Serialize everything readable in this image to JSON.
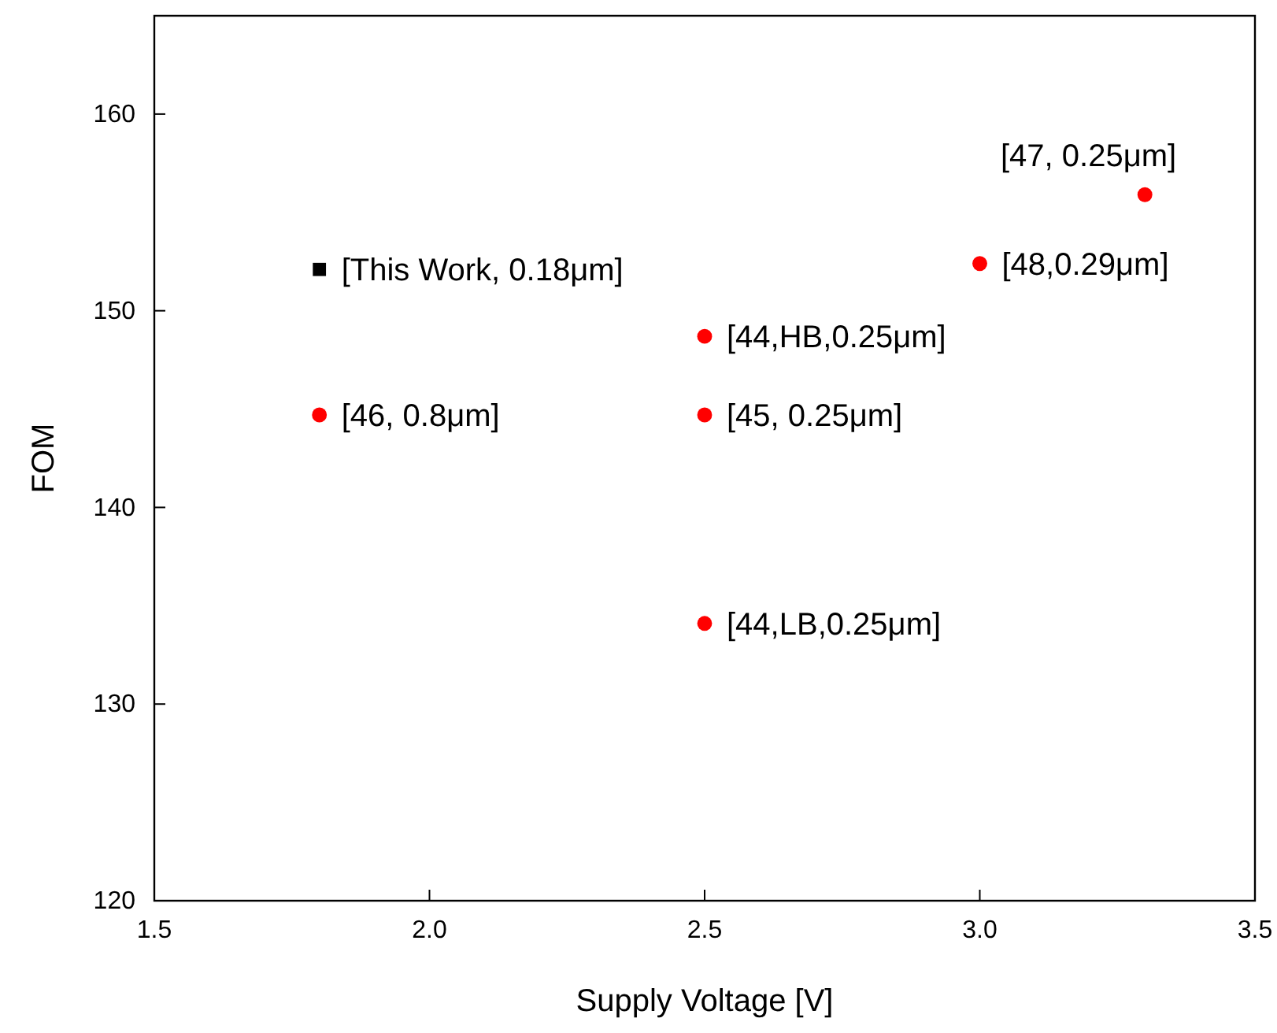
{
  "chart_data": {
    "type": "scatter",
    "xlabel": "Supply Voltage [V]",
    "ylabel": "FOM",
    "xlim": [
      1.5,
      3.5
    ],
    "ylim": [
      120,
      165
    ],
    "xticks": [
      1.5,
      {
        "value": 2,
        "label": "2.0"
      },
      2.5,
      {
        "value": 3,
        "label": "3.0"
      },
      3.5
    ],
    "yticks": [
      120,
      130,
      140,
      150,
      160
    ],
    "grid": false,
    "series": [
      {
        "color": "#000000",
        "marker": "square",
        "x": [
          1.8
        ],
        "values": [
          152.1
        ]
      },
      {
        "color": "#ff0000",
        "marker": "circle",
        "x": [
          1.8,
          2.5,
          2.5,
          2.5,
          3.0,
          3.3
        ],
        "values": [
          144.7,
          148.7,
          144.7,
          134.1,
          152.4,
          155.9
        ]
      }
    ],
    "annotations": [
      {
        "text": "[This Work, 0.18μm]",
        "x": 1.8,
        "y": 152.1
      },
      {
        "text": "[46, 0.8μm]",
        "x": 1.8,
        "y": 144.7
      },
      {
        "text": "[44,HB,0.25μm]",
        "x": 2.5,
        "y": 148.7
      },
      {
        "text": "[45, 0.25μm]",
        "x": 2.5,
        "y": 144.7
      },
      {
        "text": "[44,LB,0.25μm]",
        "x": 2.5,
        "y": 134.1
      },
      {
        "text": "[48,0.29μm]",
        "x": 3.0,
        "y": 152.4
      },
      {
        "text": "[47, 0.25μm]",
        "x": 3.3,
        "y": 155.9
      }
    ]
  }
}
